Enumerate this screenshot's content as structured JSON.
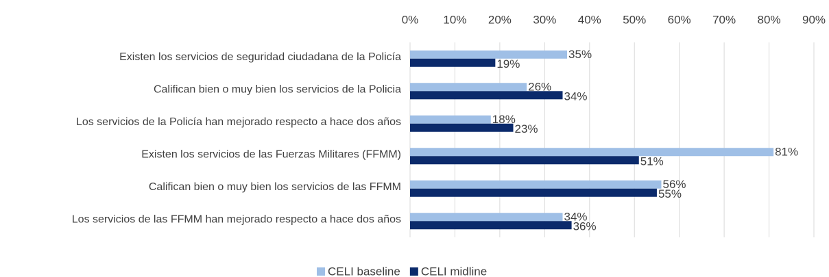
{
  "chart_data": {
    "type": "bar",
    "orientation": "horizontal",
    "categories": [
      "Existen los servicios de seguridad ciudadana de la Policía",
      "Califican bien o muy bien los servicios de la Policia",
      "Los servicios de la Policía han mejorado respecto a hace dos años",
      "Existen los servicios de las Fuerzas Militares (FFMM)",
      "Califican bien o muy bien los servicios de las FFMM",
      "Los servicios de las FFMM han mejorado respecto a hace dos años"
    ],
    "series": [
      {
        "name": "CELI baseline",
        "color": "#9fbfe6",
        "values": [
          35,
          26,
          18,
          81,
          56,
          34
        ],
        "value_labels": [
          "35%",
          "26%",
          "18%",
          "81%",
          "56%",
          "34%"
        ]
      },
      {
        "name": "CELI midline",
        "color": "#0b2a6b",
        "values": [
          19,
          34,
          23,
          51,
          55,
          36
        ],
        "value_labels": [
          "19%",
          "34%",
          "23%",
          "51%",
          "55%",
          "36%"
        ]
      }
    ],
    "xlim": [
      0,
      90
    ],
    "xticks": [
      {
        "value": 0,
        "label": "0%"
      },
      {
        "value": 10,
        "label": "10%"
      },
      {
        "value": 20,
        "label": "20%"
      },
      {
        "value": 30,
        "label": "30%"
      },
      {
        "value": 40,
        "label": "40%"
      },
      {
        "value": 50,
        "label": "50%"
      },
      {
        "value": 60,
        "label": "60%"
      },
      {
        "value": 70,
        "label": "70%"
      },
      {
        "value": 80,
        "label": "80%"
      },
      {
        "value": 90,
        "label": "90%"
      }
    ],
    "grid": true,
    "legend": "bottom"
  }
}
